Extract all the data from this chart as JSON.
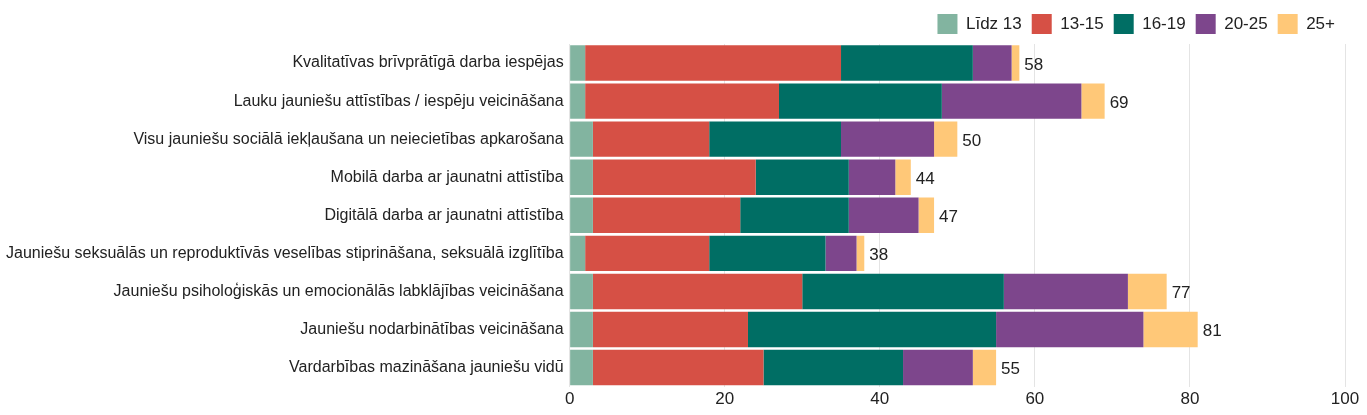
{
  "chart_data": {
    "type": "bar",
    "orientation": "horizontal",
    "stacked": true,
    "categories": [
      "Kvalitatīvas brīvprātīgā darba iespējas",
      "Lauku jauniešu attīstības / iespēju veicināšana",
      "Visu jauniešu sociālā iekļaušana un neiecietības apkarošana",
      "Mobilā darba ar jaunatni attīstība",
      "Digitālā darba ar jaunatni attīstība",
      "Jauniešu seksuālās un reproduktīvās veselības stiprināšana, seksuālā izglītība",
      "Jauniešu psiholoģiskās un emocionālās labklājības veicināšana",
      "Jauniešu nodarbinātības veicināšana",
      "Vardarbības mazināšana jauniešu vidū"
    ],
    "series": [
      {
        "name": "Līdz 13",
        "color": "#82b4a0",
        "values": [
          2,
          2,
          3,
          3,
          3,
          2,
          3,
          3,
          3
        ]
      },
      {
        "name": "13-15",
        "color": "#d65045",
        "values": [
          33,
          25,
          15,
          21,
          19,
          16,
          27,
          20,
          22
        ]
      },
      {
        "name": "16-19",
        "color": "#006e64",
        "values": [
          17,
          21,
          17,
          12,
          14,
          15,
          26,
          32,
          18
        ]
      },
      {
        "name": "20-25",
        "color": "#7d468c",
        "values": [
          5,
          18,
          12,
          6,
          9,
          4,
          16,
          19,
          9
        ]
      },
      {
        "name": "25+",
        "color": "#ffc878",
        "values": [
          1,
          3,
          3,
          2,
          2,
          1,
          5,
          7,
          3
        ]
      }
    ],
    "totals": [
      "58",
      "69",
      "50",
      "44",
      "47",
      "38",
      "77",
      "81",
      "55"
    ],
    "xlim": [
      0,
      100
    ],
    "xticks": [
      0,
      20,
      40,
      60,
      80,
      100
    ],
    "grid": "x",
    "legend": "top right"
  }
}
